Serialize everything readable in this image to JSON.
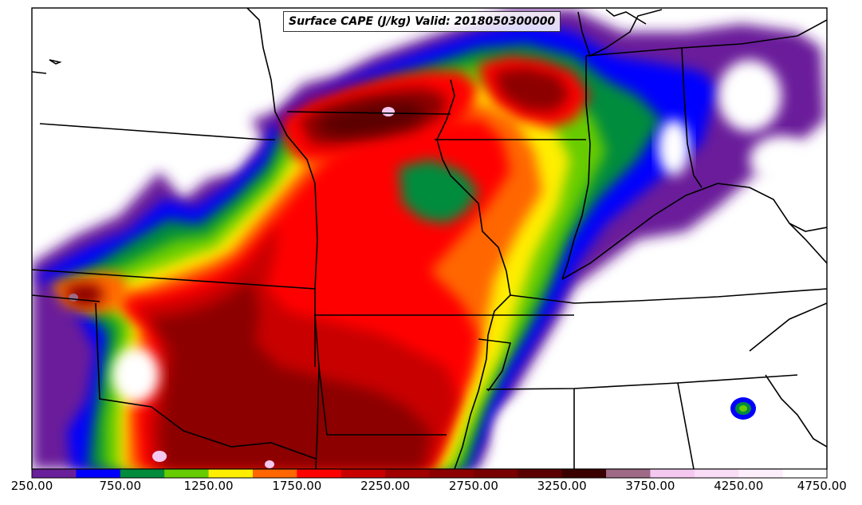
{
  "title": "Surface CAPE (J/kg) Valid: 2018050300000",
  "colorbar": {
    "ticks": [
      "250.00",
      "750.00",
      "1250.00",
      "1750.00",
      "2250.00",
      "2750.00",
      "3250.00",
      "3750.00",
      "4250.00",
      "4750.00"
    ],
    "min": 250,
    "max": 4750,
    "levels": [
      250,
      500,
      750,
      1000,
      1250,
      1500,
      1750,
      2000,
      2250,
      2500,
      2750,
      3000,
      3250,
      3500,
      3750,
      4000,
      4250,
      4500,
      4750
    ],
    "colors": [
      "#6a1f9a",
      "#0000ff",
      "#008c3c",
      "#66cc00",
      "#ffee00",
      "#ff6600",
      "#ff0000",
      "#c80000",
      "#a00000",
      "#8c0000",
      "#780000",
      "#5a0000",
      "#3a0000",
      "#9e6a85",
      "#f5c8f0",
      "#f9dcf5",
      "#fdeefb",
      "#ffffff"
    ]
  },
  "cape_features": [
    {
      "value": 2700,
      "cx": -93.8,
      "cy": 43.2,
      "rx": 2.2,
      "ry": 0.9
    },
    {
      "value": 2100,
      "cx": -91.8,
      "cy": 40.9,
      "rx": 2.0,
      "ry": 1.2
    },
    {
      "value": 1300,
      "cx": -90.6,
      "cy": 38.5,
      "rx": 1.4,
      "ry": 1.3
    },
    {
      "value": 2200,
      "cx": -95.5,
      "cy": 37.8,
      "rx": 1.8,
      "ry": 3.0
    },
    {
      "value": 3000,
      "cx": -97.0,
      "cy": 36.0,
      "rx": 1.5,
      "ry": 2.2
    },
    {
      "value": 2600,
      "cx": -94.0,
      "cy": 34.8,
      "rx": 1.6,
      "ry": 1.4
    },
    {
      "value": 2500,
      "cx": -101.0,
      "cy": 38.2,
      "rx": 0.6,
      "ry": 0.5
    },
    {
      "value": 700,
      "cx": -88.4,
      "cy": 43.3,
      "rx": 1.6,
      "ry": 1.2
    },
    {
      "value": 600,
      "cx": -87.0,
      "cy": 41.0,
      "rx": 1.0,
      "ry": 1.6
    }
  ]
}
